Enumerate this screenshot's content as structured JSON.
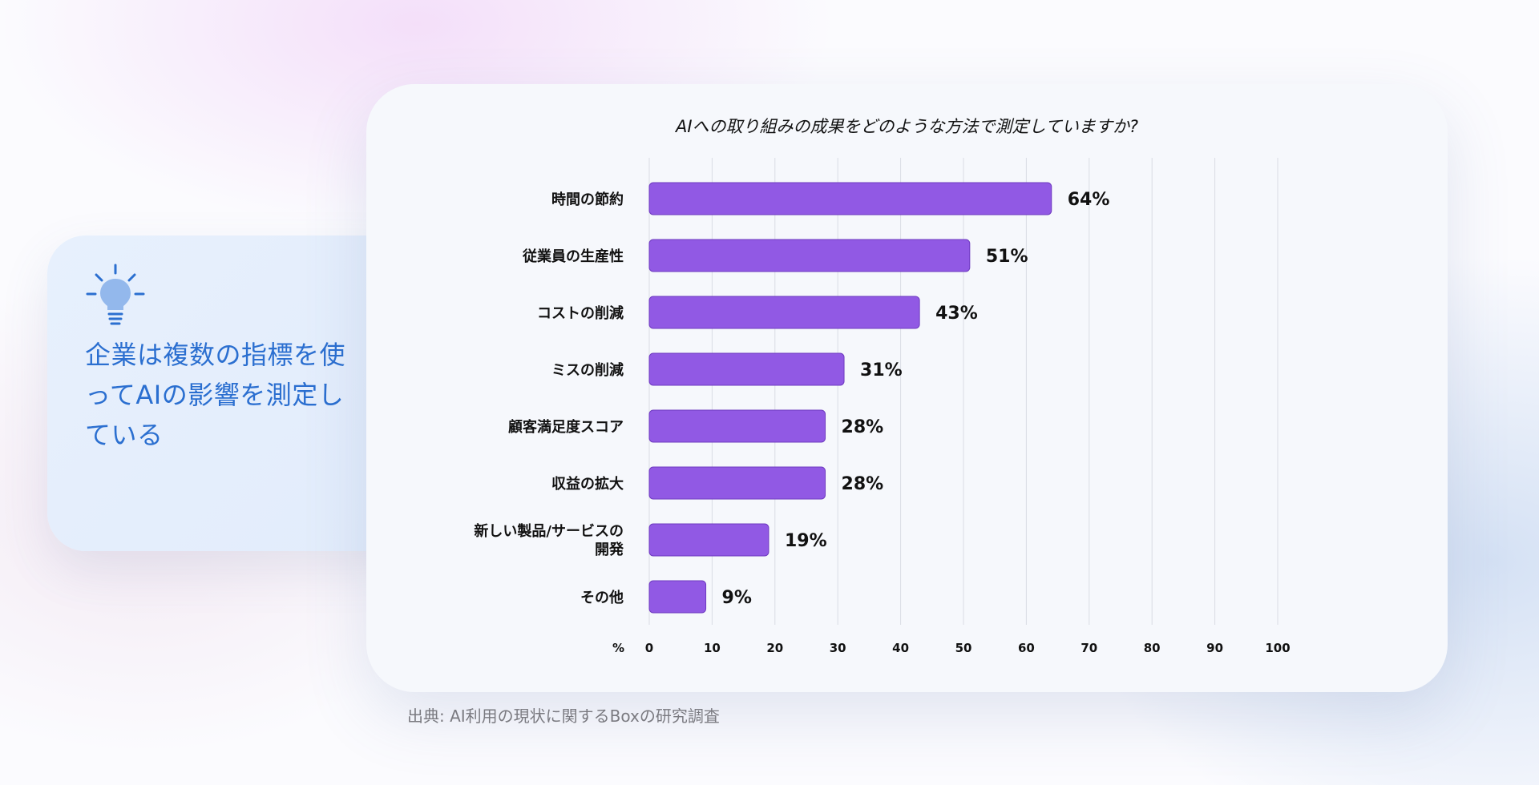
{
  "callout": {
    "icon": "lightbulb-icon",
    "text": "企業は複数の指標を使ってAIの影響を測定している",
    "color": "#2b6fd0"
  },
  "chart_data": {
    "type": "bar",
    "orientation": "horizontal",
    "title": "AIへの取り組みの成果をどのような方法で測定していますか?",
    "categories": [
      "時間の節約",
      "従業員の生産性",
      "コストの削減",
      "ミスの削減",
      "顧客満足度スコア",
      "収益の拡大",
      "新しい製品/サービスの開発",
      "その他"
    ],
    "values": [
      64,
      51,
      43,
      31,
      28,
      28,
      19,
      9
    ],
    "value_labels": [
      "64%",
      "51%",
      "43%",
      "31%",
      "28%",
      "28%",
      "19%",
      "9%"
    ],
    "xlabel": "%",
    "xlim": [
      0,
      100
    ],
    "xticks": [
      0,
      10,
      20,
      30,
      40,
      50,
      60,
      70,
      80,
      90,
      100
    ],
    "grid": true,
    "bar_color": "#9159e4"
  },
  "source": "出典: AI利用の現状に関するBoxの研究調査"
}
